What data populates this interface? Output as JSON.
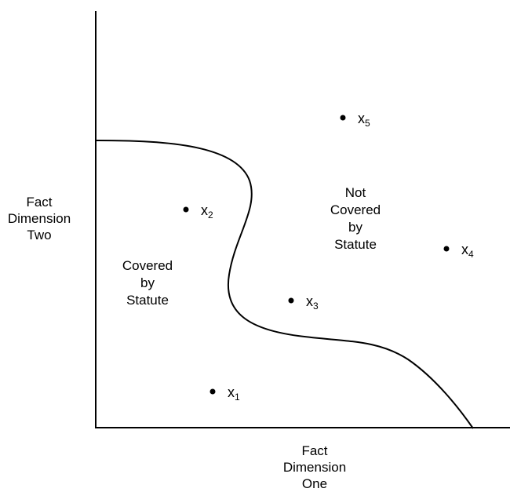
{
  "axes": {
    "y_label_lines": [
      "Fact",
      "Dimension",
      "Two"
    ],
    "x_label_lines": [
      "Fact",
      "Dimension",
      "One"
    ]
  },
  "regions": {
    "covered_lines": [
      "Covered",
      "by",
      "Statute"
    ],
    "not_covered_lines": [
      "Not",
      "Covered",
      "by",
      "Statute"
    ]
  },
  "points": [
    {
      "base": "x",
      "sub": "1"
    },
    {
      "base": "x",
      "sub": "2"
    },
    {
      "base": "x",
      "sub": "3"
    },
    {
      "base": "x",
      "sub": "4"
    },
    {
      "base": "x",
      "sub": "5"
    }
  ],
  "colors": {
    "ink": "#000000",
    "background": "#ffffff"
  }
}
